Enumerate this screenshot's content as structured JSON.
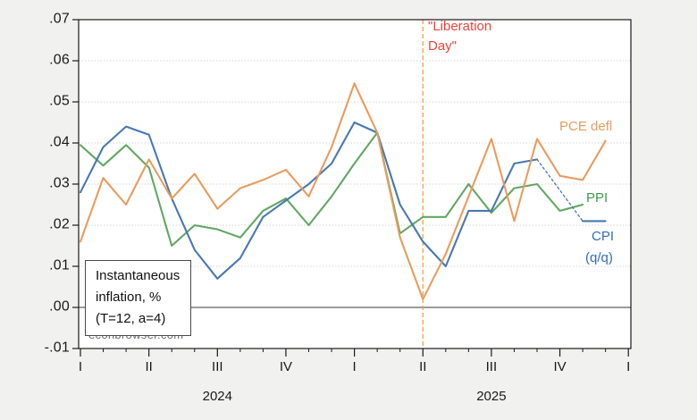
{
  "chart_data": {
    "type": "line",
    "title": "",
    "annotation_box": {
      "line1": "Instantaneous",
      "line2": "inflation, %",
      "line3": "(T=12, a=4)"
    },
    "watermark": "econbrowser.com",
    "y_axis": {
      "min": -0.01,
      "max": 0.07,
      "step": 0.01,
      "tick_labels": [
        ".07",
        ".06",
        ".05",
        ".04",
        ".03",
        ".02",
        ".01",
        ".00",
        "-.01"
      ],
      "zero_line": true,
      "grid": "dotted"
    },
    "x_axis": {
      "unit": "month",
      "months": [
        "Jan 2024",
        "Feb 2024",
        "Mar 2024",
        "Apr 2024",
        "May 2024",
        "Jun 2024",
        "Jul 2024",
        "Aug 2024",
        "Sep 2024",
        "Oct 2024",
        "Nov 2024",
        "Dec 2024",
        "Jan 2025",
        "Feb 2025",
        "Mar 2025",
        "Apr 2025",
        "May 2025",
        "Jun 2025",
        "Jul 2025",
        "Aug 2025",
        "Sep 2025",
        "Oct 2025",
        "Nov 2025",
        "Dec 2025"
      ],
      "quarter_tick_labels": [
        "I",
        "II",
        "III",
        "IV",
        "I",
        "II",
        "III",
        "IV",
        "I"
      ],
      "year_labels": [
        {
          "text": "2024",
          "at_quarter_index": 2
        },
        {
          "text": "2025",
          "at_quarter_index": 6
        }
      ]
    },
    "event_line": {
      "x_month_index": 15,
      "style": "dashed",
      "color": "#f2a33a",
      "label_line1": "\"Liberation",
      "label_line2": "Day\"",
      "label_color": "#f0433a"
    },
    "series": [
      {
        "name": "PPI",
        "label": "PPI",
        "color": "#62a763",
        "values": [
          0.0395,
          0.0345,
          0.0395,
          0.034,
          0.015,
          0.02,
          0.019,
          0.017,
          0.0235,
          0.0265,
          0.02,
          0.027,
          0.035,
          0.0425,
          0.018,
          0.022,
          0.022,
          0.03,
          0.023,
          0.029,
          0.03,
          0.0235,
          0.025,
          null
        ]
      },
      {
        "name": "CPI (q/q)",
        "label_line1": "CPI",
        "label_line2": "(q/q)",
        "color": "#4878b0",
        "dashed_segment": [
          20,
          22
        ],
        "values": [
          0.028,
          0.039,
          0.044,
          0.042,
          0.0265,
          0.014,
          0.007,
          0.012,
          0.022,
          0.026,
          0.03,
          0.035,
          0.045,
          0.0425,
          0.025,
          0.016,
          0.01,
          0.0235,
          0.0235,
          0.035,
          0.036,
          0.0285,
          0.021,
          0.021
        ]
      },
      {
        "name": "PCE defl",
        "label": "PCE defl",
        "color": "#e89c5d",
        "values": [
          0.016,
          0.0315,
          0.025,
          0.036,
          0.0265,
          0.0325,
          0.024,
          0.029,
          0.031,
          0.0335,
          0.027,
          0.039,
          0.0545,
          0.0425,
          0.017,
          0.002,
          0.013,
          0.027,
          0.041,
          0.021,
          0.041,
          0.032,
          0.031,
          0.0405
        ]
      }
    ]
  }
}
